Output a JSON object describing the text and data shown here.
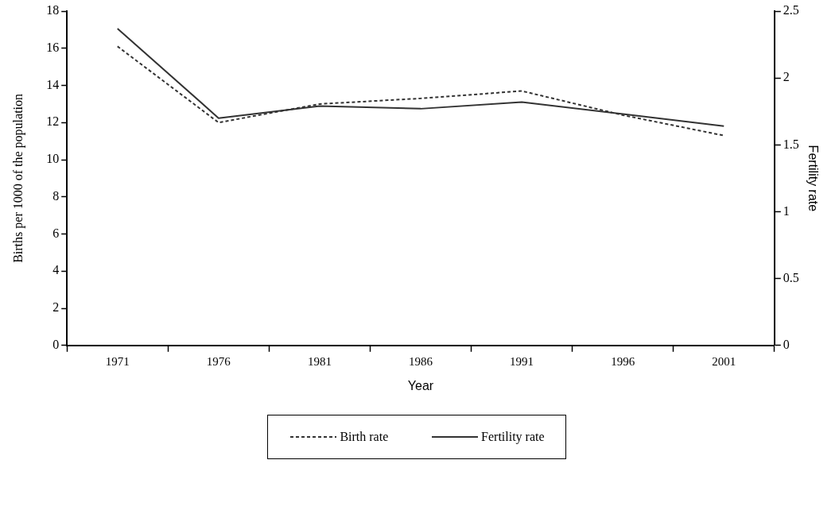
{
  "chart_data": {
    "type": "line",
    "xlabel": "Year",
    "ylabel": "Births per 1000 of the population",
    "y2label": "Fertility rate",
    "categories": [
      "1971",
      "1976",
      "1981",
      "1986",
      "1991",
      "1996",
      "2001"
    ],
    "series": [
      {
        "name": "Birth rate",
        "color": "#333333",
        "line_style": "dashed",
        "values": [
          16.1,
          12.0,
          13.0,
          13.3,
          13.7,
          12.4,
          11.3
        ]
      },
      {
        "name": "Fertility rate",
        "color": "#333333",
        "line_style": "solid",
        "axis": "y2",
        "values": [
          2.37,
          1.7,
          1.79,
          1.77,
          1.82,
          1.73,
          1.64
        ]
      }
    ],
    "ylim": [
      0,
      18
    ],
    "yticks": [
      0,
      2,
      4,
      6,
      8,
      10,
      12,
      14,
      16,
      18
    ],
    "y2lim": [
      0,
      2.5
    ],
    "y2ticks": [
      0,
      0.5,
      1,
      1.5,
      2,
      2.5
    ],
    "grid": false,
    "legend": "bottom",
    "marker": "none"
  }
}
